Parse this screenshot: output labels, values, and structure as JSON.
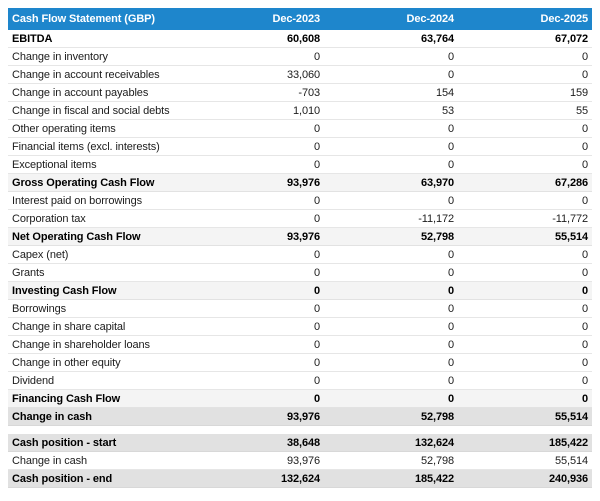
{
  "chart_data": {
    "type": "table",
    "title": "Cash Flow Statement (GBP)",
    "columns": [
      "Dec-2023",
      "Dec-2024",
      "Dec-2025"
    ],
    "colors": {
      "header_bg": "#1e86cc",
      "header_text": "#ffffff",
      "subtotal_row_bg": "#f4f4f4",
      "total_row_bg": "#e1e1e1",
      "row_border": "#e6e6e6",
      "text": "#1c1c1c"
    },
    "rows": [
      {
        "label": "EBITDA",
        "values": [
          "60,608",
          "63,764",
          "67,072"
        ],
        "style": "emphasis"
      },
      {
        "label": "Change in inventory",
        "values": [
          "0",
          "0",
          "0"
        ],
        "style": "normal"
      },
      {
        "label": "Change in account receivables",
        "values": [
          "33,060",
          "0",
          "0"
        ],
        "style": "normal"
      },
      {
        "label": "Change in account payables",
        "values": [
          "-703",
          "154",
          "159"
        ],
        "style": "normal"
      },
      {
        "label": "Change in fiscal and social debts",
        "values": [
          "1,010",
          "53",
          "55"
        ],
        "style": "normal"
      },
      {
        "label": "Other operating items",
        "values": [
          "0",
          "0",
          "0"
        ],
        "style": "normal"
      },
      {
        "label": "Financial items (excl. interests)",
        "values": [
          "0",
          "0",
          "0"
        ],
        "style": "normal"
      },
      {
        "label": "Exceptional items",
        "values": [
          "0",
          "0",
          "0"
        ],
        "style": "normal"
      },
      {
        "label": "Gross Operating Cash Flow",
        "values": [
          "93,976",
          "63,970",
          "67,286"
        ],
        "style": "subtotal"
      },
      {
        "label": "Interest paid on borrowings",
        "values": [
          "0",
          "0",
          "0"
        ],
        "style": "normal"
      },
      {
        "label": "Corporation tax",
        "values": [
          "0",
          "-11,172",
          "-11,772"
        ],
        "style": "normal"
      },
      {
        "label": "Net Operating Cash Flow",
        "values": [
          "93,976",
          "52,798",
          "55,514"
        ],
        "style": "subtotal"
      },
      {
        "label": "Capex (net)",
        "values": [
          "0",
          "0",
          "0"
        ],
        "style": "normal"
      },
      {
        "label": "Grants",
        "values": [
          "0",
          "0",
          "0"
        ],
        "style": "normal"
      },
      {
        "label": "Investing Cash Flow",
        "values": [
          "0",
          "0",
          "0"
        ],
        "style": "subtotal"
      },
      {
        "label": "Borrowings",
        "values": [
          "0",
          "0",
          "0"
        ],
        "style": "normal"
      },
      {
        "label": "Change in share capital",
        "values": [
          "0",
          "0",
          "0"
        ],
        "style": "normal"
      },
      {
        "label": "Change in shareholder loans",
        "values": [
          "0",
          "0",
          "0"
        ],
        "style": "normal"
      },
      {
        "label": "Change in other equity",
        "values": [
          "0",
          "0",
          "0"
        ],
        "style": "normal"
      },
      {
        "label": "Dividend",
        "values": [
          "0",
          "0",
          "0"
        ],
        "style": "normal"
      },
      {
        "label": "Financing Cash Flow",
        "values": [
          "0",
          "0",
          "0"
        ],
        "style": "subtotal"
      },
      {
        "label": "Change in cash",
        "values": [
          "93,976",
          "52,798",
          "55,514"
        ],
        "style": "total"
      },
      {
        "label": "Cash position - start",
        "values": [
          "38,648",
          "132,624",
          "185,422"
        ],
        "style": "total",
        "gap_before": true
      },
      {
        "label": "Change in cash",
        "values": [
          "93,976",
          "52,798",
          "55,514"
        ],
        "style": "normal"
      },
      {
        "label": "Cash position - end",
        "values": [
          "132,624",
          "185,422",
          "240,936"
        ],
        "style": "total"
      }
    ]
  }
}
